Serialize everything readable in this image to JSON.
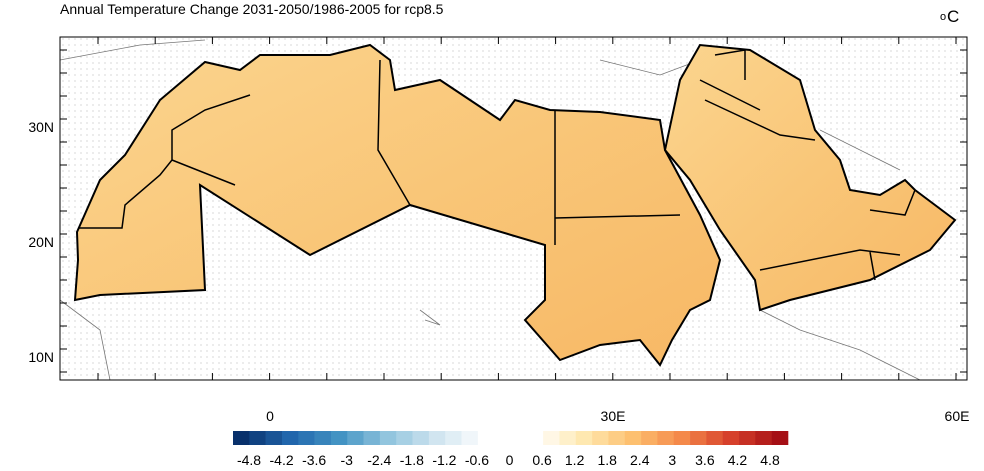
{
  "title": "Annual Temperature Change 2031-2050/1986-2005 for rcp8.5",
  "unit": {
    "degree": "o",
    "letter": "C"
  },
  "lat_labels": [
    "30N",
    "20N",
    "10N"
  ],
  "lon_labels": [
    "0",
    "30E",
    "60E"
  ],
  "colorbar_labels": [
    "-4.8",
    "-4.2",
    "-3.6",
    "-3",
    "-2.4",
    "-1.8",
    "-1.2",
    "-0.6",
    "0",
    "0.6",
    "1.2",
    "1.8",
    "2.4",
    "3",
    "3.6",
    "4.2",
    "4.8"
  ]
}
